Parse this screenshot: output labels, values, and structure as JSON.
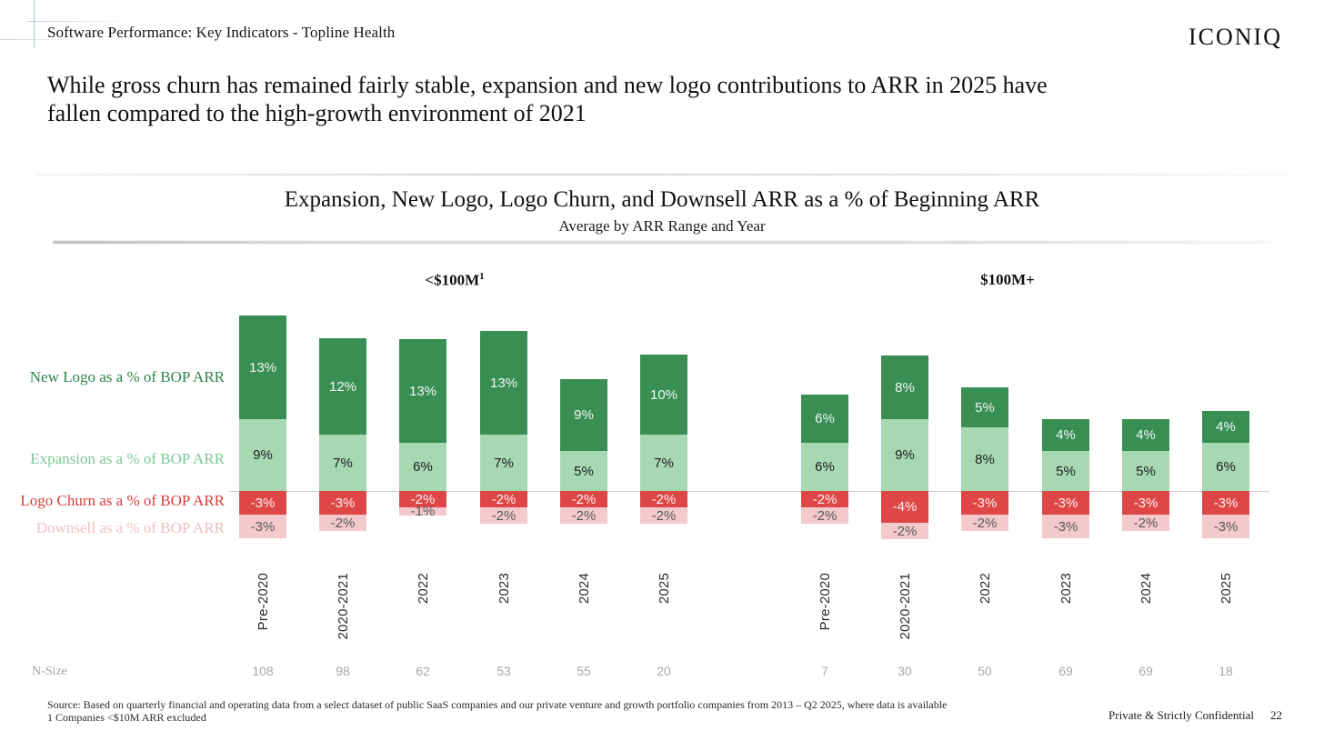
{
  "header": {
    "eyebrow": "Software Performance: Key Indicators - Topline Health",
    "logo": "ICONIQ",
    "title_lines": [
      "While gross churn has remained fairly stable, expansion and new logo contributions to ARR in 2025 have",
      "fallen compared to the high-growth environment of 2021"
    ]
  },
  "chart": {
    "title": "Expansion, New Logo, Logo Churn, and Downsell ARR as a % of Beginning ARR",
    "subtitle": "Average by ARR Range and Year",
    "n_size_label": "N-Size"
  },
  "chart_data": {
    "type": "bar",
    "stacked": true,
    "unit": "%",
    "value_suffix": "%",
    "categories": [
      "Pre-2020",
      "2020-2021",
      "2022",
      "2023",
      "2024",
      "2025"
    ],
    "groups": [
      {
        "name": "<$100M",
        "superscript": "1",
        "n_sizes": [
          "108",
          "98",
          "62",
          "53",
          "55",
          "20"
        ],
        "series": [
          {
            "name": "New Logo as a % of BOP ARR",
            "values": [
              13,
              12,
              13,
              13,
              9,
              10
            ]
          },
          {
            "name": "Expansion as a % of BOP ARR",
            "values": [
              9,
              7,
              6,
              7,
              5,
              7
            ]
          },
          {
            "name": "Logo Churn as a % of BOP ARR",
            "values": [
              -3,
              -3,
              -2,
              -2,
              -2,
              -2
            ]
          },
          {
            "name": "Downsell as a % of BOP ARR",
            "values": [
              -3,
              -2,
              -1,
              -2,
              -2,
              -2
            ]
          }
        ]
      },
      {
        "name": "$100M+",
        "superscript": "",
        "n_sizes": [
          "7",
          "30",
          "50",
          "69",
          "69",
          "18"
        ],
        "series": [
          {
            "name": "New Logo as a % of BOP ARR",
            "values": [
              6,
              8,
              5,
              4,
              4,
              4
            ]
          },
          {
            "name": "Expansion as a % of BOP ARR",
            "values": [
              6,
              9,
              8,
              5,
              5,
              6
            ]
          },
          {
            "name": "Logo Churn as a % of BOP ARR",
            "values": [
              -2,
              -4,
              -3,
              -3,
              -3,
              -3
            ]
          },
          {
            "name": "Downsell as a % of BOP ARR",
            "values": [
              -2,
              -2,
              -2,
              -3,
              -2,
              -3
            ]
          }
        ]
      }
    ],
    "series_meta": [
      {
        "name": "New Logo as a % of BOP ARR",
        "bar_color": "#388e53",
        "label_color": "#2e8449",
        "value_text_color": "#f2f8f2"
      },
      {
        "name": "Expansion as a % of BOP ARR",
        "bar_color": "#a6d9b2",
        "label_color": "#7fc597",
        "value_text_color": "#1c1c1c"
      },
      {
        "name": "Logo Churn as a % of BOP ARR",
        "bar_color": "#df4646",
        "label_color": "#d83e3e",
        "value_text_color": "#fdf3f3"
      },
      {
        "name": "Downsell as a % of BOP ARR",
        "bar_color": "#f3c9cc",
        "label_color": "#f0bdc1",
        "value_text_color": "#55585c"
      }
    ],
    "legend_position": "left",
    "grid": false,
    "ylim": [
      -7,
      22
    ]
  },
  "footer": {
    "source_lines": [
      "Source: Based on quarterly financial and operating data from a select dataset of public SaaS companies and our private venture and growth portfolio companies from 2013 – Q2 2025, where data is available",
      "1 Companies <$10M ARR excluded"
    ],
    "confidential": "Private & Strictly Confidential",
    "page_number": "22"
  }
}
